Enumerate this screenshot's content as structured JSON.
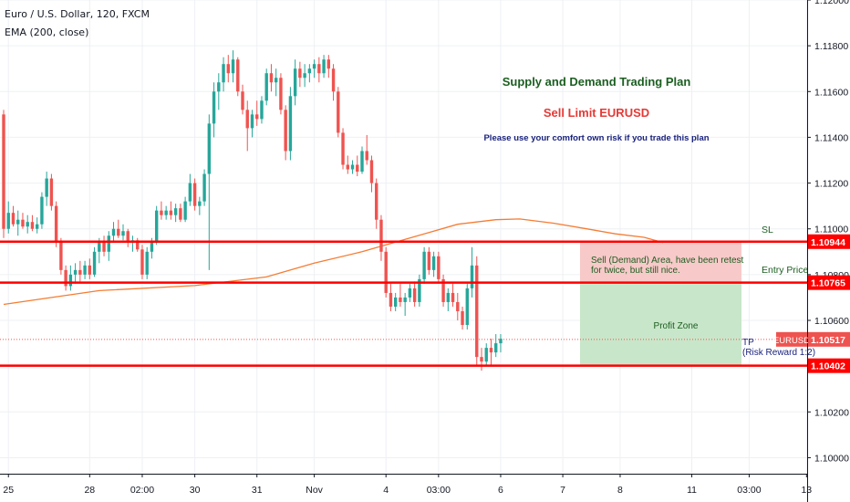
{
  "header": {
    "symbol_line": "Euro / U.S. Dollar, 120, FXCM",
    "indicator_line": "EMA (200, close)"
  },
  "annotations": {
    "plan_title": "Supply and Demand Trading Plan",
    "plan_subtitle": "Sell Limit EURUSD",
    "plan_note": "Please use your comfort own risk if you trade this plan",
    "sl": "SL",
    "entry": "Entry Price",
    "demand_line1": "Sell (Demand) Area, have been retest",
    "demand_line2": "for twice, but still nice.",
    "profit_zone": "Profit Zone",
    "tp_line1": "TP",
    "tp_line2": "(Risk Reward 1:2)"
  },
  "colors": {
    "up": "#26a69a",
    "down": "#ef5350",
    "ema": "#f57c33",
    "level": "#ff0000",
    "title": "#1b5e20",
    "subtitle": "#e53935",
    "note": "#1a237e",
    "risk_zone": "#f8c9c9",
    "profit_zone": "#c8e6c9",
    "price_tag": "#ef5350"
  },
  "chart_data": {
    "type": "candlestick",
    "symbol": "EURUSD",
    "timeframe": "120",
    "source": "FXCM",
    "ylim": [
      1.0993,
      1.12
    ],
    "y_ticks": [
      "1.12000",
      "1.11800",
      "1.11600",
      "1.11400",
      "1.11200",
      "1.11000",
      "1.10800",
      "1.10600",
      "1.10400",
      "1.10200",
      "1.10000"
    ],
    "x_ticks": [
      {
        "label": "25",
        "i": 1
      },
      {
        "label": "28",
        "i": 18
      },
      {
        "label": "02:00",
        "i": 29
      },
      {
        "label": "30",
        "i": 40
      },
      {
        "label": "31",
        "i": 53
      },
      {
        "label": "Nov",
        "i": 65
      },
      {
        "label": "4",
        "i": 80
      },
      {
        "label": "03:00",
        "i": 91
      },
      {
        "label": "6",
        "i": 104
      },
      {
        "label": "7",
        "i": 117
      },
      {
        "label": "8",
        "i": 129
      },
      {
        "label": "11",
        "i": 144
      },
      {
        "label": "03:00",
        "i": 156
      },
      {
        "label": "13",
        "i": 168
      }
    ],
    "candles": [
      [
        1.115,
        1.1152,
        1.1096,
        1.11
      ],
      [
        1.11,
        1.1112,
        1.1098,
        1.1107
      ],
      [
        1.1107,
        1.111,
        1.1101,
        1.1102
      ],
      [
        1.1102,
        1.1108,
        1.1097,
        1.1104
      ],
      [
        1.1104,
        1.1107,
        1.11,
        1.1101
      ],
      [
        1.1101,
        1.1106,
        1.1098,
        1.1103
      ],
      [
        1.1103,
        1.1106,
        1.1099,
        1.11
      ],
      [
        1.11,
        1.1105,
        1.1098,
        1.1102
      ],
      [
        1.1102,
        1.1116,
        1.11,
        1.1114
      ],
      [
        1.1114,
        1.1125,
        1.111,
        1.1122
      ],
      [
        1.1122,
        1.1124,
        1.1108,
        1.111
      ],
      [
        1.111,
        1.1112,
        1.1092,
        1.1094
      ],
      [
        1.1094,
        1.1096,
        1.108,
        1.1082
      ],
      [
        1.1082,
        1.1084,
        1.1073,
        1.1075
      ],
      [
        1.1075,
        1.1084,
        1.1073,
        1.108
      ],
      [
        1.108,
        1.1085,
        1.1076,
        1.1082
      ],
      [
        1.1082,
        1.1086,
        1.1077,
        1.108
      ],
      [
        1.108,
        1.1086,
        1.1078,
        1.1084
      ],
      [
        1.1084,
        1.1087,
        1.1078,
        1.108
      ],
      [
        1.108,
        1.1092,
        1.1079,
        1.109
      ],
      [
        1.109,
        1.1096,
        1.1085,
        1.1094
      ],
      [
        1.1094,
        1.1097,
        1.1088,
        1.109
      ],
      [
        1.109,
        1.1099,
        1.1086,
        1.1097
      ],
      [
        1.1097,
        1.1103,
        1.1094,
        1.11
      ],
      [
        1.11,
        1.1104,
        1.1096,
        1.1097
      ],
      [
        1.1097,
        1.1102,
        1.1095,
        1.1099
      ],
      [
        1.1099,
        1.11,
        1.1092,
        1.1094
      ],
      [
        1.1094,
        1.1097,
        1.109,
        1.1095
      ],
      [
        1.1095,
        1.1096,
        1.109,
        1.1091
      ],
      [
        1.1091,
        1.1093,
        1.1078,
        1.108
      ],
      [
        1.108,
        1.1092,
        1.1078,
        1.109
      ],
      [
        1.109,
        1.1096,
        1.1087,
        1.1094
      ],
      [
        1.1094,
        1.111,
        1.1093,
        1.1108
      ],
      [
        1.1108,
        1.1112,
        1.1104,
        1.1106
      ],
      [
        1.1106,
        1.111,
        1.1104,
        1.1108
      ],
      [
        1.1108,
        1.1112,
        1.1104,
        1.1106
      ],
      [
        1.1106,
        1.1111,
        1.1103,
        1.1109
      ],
      [
        1.1109,
        1.1111,
        1.1103,
        1.1104
      ],
      [
        1.1104,
        1.1114,
        1.1103,
        1.1112
      ],
      [
        1.1112,
        1.1124,
        1.111,
        1.112
      ],
      [
        1.112,
        1.1122,
        1.1108,
        1.111
      ],
      [
        1.111,
        1.1114,
        1.1106,
        1.1112
      ],
      [
        1.1112,
        1.1126,
        1.111,
        1.1124
      ],
      [
        1.1124,
        1.115,
        1.1082,
        1.1146
      ],
      [
        1.1146,
        1.1164,
        1.114,
        1.116
      ],
      [
        1.116,
        1.1168,
        1.1152,
        1.1164
      ],
      [
        1.1164,
        1.1175,
        1.116,
        1.1172
      ],
      [
        1.1172,
        1.1176,
        1.1164,
        1.1168
      ],
      [
        1.1168,
        1.1178,
        1.1164,
        1.1174
      ],
      [
        1.1174,
        1.1175,
        1.1158,
        1.116
      ],
      [
        1.116,
        1.1163,
        1.115,
        1.1152
      ],
      [
        1.1152,
        1.1156,
        1.1134,
        1.1144
      ],
      [
        1.1144,
        1.1152,
        1.114,
        1.115
      ],
      [
        1.115,
        1.1156,
        1.1145,
        1.1148
      ],
      [
        1.1148,
        1.1158,
        1.1146,
        1.1156
      ],
      [
        1.1156,
        1.117,
        1.1154,
        1.1168
      ],
      [
        1.1168,
        1.1172,
        1.116,
        1.1164
      ],
      [
        1.1164,
        1.117,
        1.1158,
        1.1166
      ],
      [
        1.1166,
        1.1168,
        1.115,
        1.1152
      ],
      [
        1.1152,
        1.1154,
        1.113,
        1.1134
      ],
      [
        1.1134,
        1.1162,
        1.113,
        1.1158
      ],
      [
        1.1158,
        1.1174,
        1.1154,
        1.117
      ],
      [
        1.117,
        1.1173,
        1.1162,
        1.1166
      ],
      [
        1.1166,
        1.1172,
        1.1162,
        1.1168
      ],
      [
        1.1168,
        1.1172,
        1.1164,
        1.117
      ],
      [
        1.117,
        1.1174,
        1.1166,
        1.1172
      ],
      [
        1.1172,
        1.1175,
        1.1164,
        1.1168
      ],
      [
        1.1168,
        1.1176,
        1.1166,
        1.1174
      ],
      [
        1.1174,
        1.1176,
        1.1166,
        1.117
      ],
      [
        1.117,
        1.1172,
        1.1156,
        1.116
      ],
      [
        1.116,
        1.1162,
        1.114,
        1.1142
      ],
      [
        1.1142,
        1.1144,
        1.1126,
        1.1128
      ],
      [
        1.1128,
        1.1132,
        1.1124,
        1.1126
      ],
      [
        1.1126,
        1.113,
        1.1124,
        1.1128
      ],
      [
        1.1128,
        1.1132,
        1.1123,
        1.1125
      ],
      [
        1.1125,
        1.1136,
        1.1124,
        1.1134
      ],
      [
        1.1134,
        1.1141,
        1.1128,
        1.113
      ],
      [
        1.113,
        1.1132,
        1.1116,
        1.112
      ],
      [
        1.112,
        1.1122,
        1.11,
        1.1104
      ],
      [
        1.1104,
        1.1106,
        1.1086,
        1.109
      ],
      [
        1.109,
        1.1092,
        1.107,
        1.1072
      ],
      [
        1.1072,
        1.1076,
        1.1064,
        1.1066
      ],
      [
        1.1066,
        1.1072,
        1.1064,
        1.107
      ],
      [
        1.107,
        1.1076,
        1.1066,
        1.1068
      ],
      [
        1.1068,
        1.1072,
        1.1062,
        1.107
      ],
      [
        1.107,
        1.1076,
        1.1068,
        1.1074
      ],
      [
        1.1074,
        1.1077,
        1.1066,
        1.1068
      ],
      [
        1.1068,
        1.108,
        1.1066,
        1.1078
      ],
      [
        1.1078,
        1.1092,
        1.1076,
        1.109
      ],
      [
        1.109,
        1.1092,
        1.108,
        1.1082
      ],
      [
        1.1082,
        1.109,
        1.1079,
        1.1088
      ],
      [
        1.1088,
        1.109,
        1.1076,
        1.1078
      ],
      [
        1.1078,
        1.108,
        1.1066,
        1.1068
      ],
      [
        1.1068,
        1.1074,
        1.1064,
        1.1072
      ],
      [
        1.1072,
        1.1076,
        1.1066,
        1.1068
      ],
      [
        1.1068,
        1.1072,
        1.106,
        1.1064
      ],
      [
        1.1064,
        1.1066,
        1.1056,
        1.1058
      ],
      [
        1.1058,
        1.1076,
        1.1056,
        1.1074
      ],
      [
        1.1074,
        1.1092,
        1.107,
        1.1084
      ],
      [
        1.1084,
        1.1088,
        1.104,
        1.1044
      ],
      [
        1.1044,
        1.1048,
        1.1038,
        1.1042
      ],
      [
        1.1042,
        1.105,
        1.104,
        1.1048
      ],
      [
        1.1048,
        1.1052,
        1.104,
        1.1046
      ],
      [
        1.1046,
        1.1054,
        1.1044,
        1.105
      ],
      [
        1.105,
        1.1054,
        1.1046,
        1.1052
      ]
    ],
    "ema_points": [
      [
        0,
        1.1067
      ],
      [
        20,
        1.1073
      ],
      [
        40,
        1.10752
      ],
      [
        55,
        1.1079
      ],
      [
        65,
        1.1085
      ],
      [
        75,
        1.109
      ],
      [
        85,
        1.1096
      ],
      [
        95,
        1.1102
      ],
      [
        103,
        1.1104
      ],
      [
        108,
        1.11043
      ],
      [
        115,
        1.11025
      ],
      [
        122,
        1.11
      ],
      [
        128,
        1.10978
      ],
      [
        134,
        1.10963
      ],
      [
        138,
        1.1094
      ]
    ],
    "levels": [
      {
        "label": "1.10944",
        "value": 1.10944
      },
      {
        "label": "1.10765",
        "value": 1.10765
      },
      {
        "label": "1.10402",
        "value": 1.10402
      }
    ],
    "current_price": {
      "symbol": "EURUSD",
      "label": "1.10517",
      "value": 1.10517
    }
  }
}
